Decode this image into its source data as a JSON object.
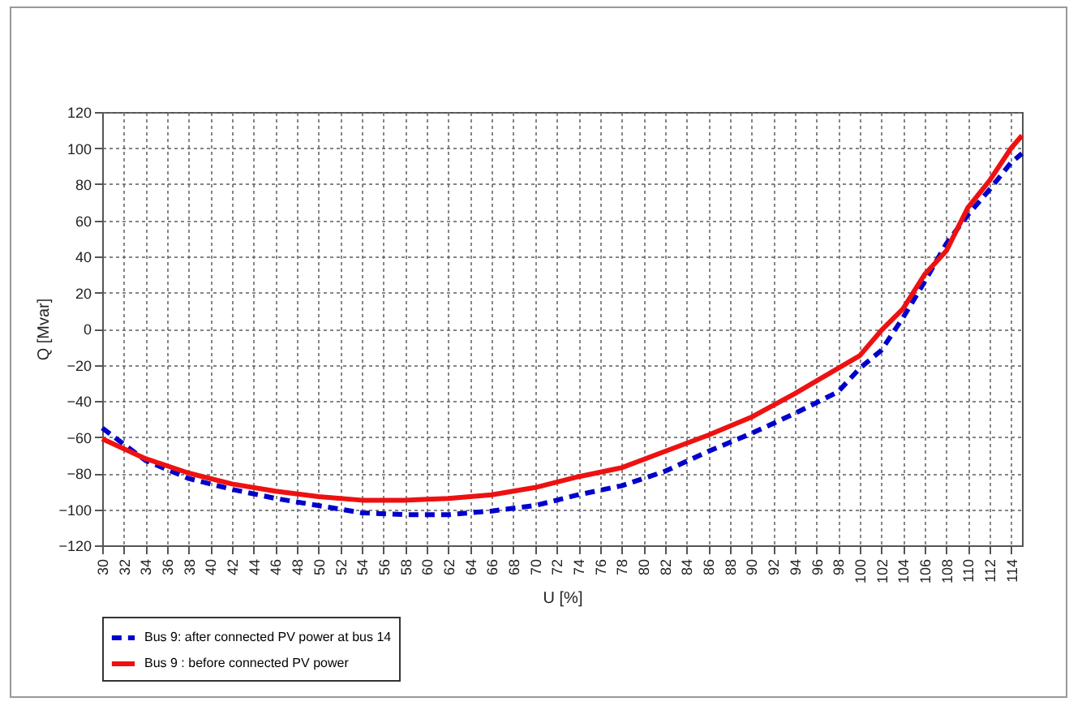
{
  "chart_data": {
    "type": "line",
    "xlabel": "U [%]",
    "ylabel": "Q [Mvar]",
    "xlim": [
      30,
      115
    ],
    "xticks": [
      30,
      32,
      34,
      36,
      38,
      40,
      42,
      44,
      46,
      48,
      50,
      52,
      54,
      56,
      58,
      60,
      62,
      64,
      66,
      68,
      70,
      72,
      74,
      76,
      78,
      80,
      82,
      84,
      86,
      88,
      90,
      92,
      94,
      96,
      98,
      100,
      102,
      104,
      106,
      108,
      110,
      112,
      114
    ],
    "ylim": [
      -120,
      120
    ],
    "yticks": [
      -120,
      -100,
      -80,
      -60,
      -40,
      -20,
      0,
      20,
      40,
      60,
      80,
      100,
      120
    ],
    "grid": true,
    "legend": "bottom",
    "marker": "none",
    "x": [
      30,
      34,
      38,
      42,
      46,
      50,
      54,
      58,
      62,
      66,
      70,
      74,
      78,
      82,
      86,
      90,
      94,
      98,
      100,
      102,
      104,
      106,
      108,
      110,
      112,
      114,
      115
    ],
    "series": [
      {
        "name": "Bus 9: after connected PV power at bus 14",
        "color": "#0000cc",
        "line_style": "dashed",
        "values": [
          -55,
          -73,
          -83,
          -89,
          -94,
          -98,
          -102,
          -103,
          -103,
          -101,
          -98,
          -92,
          -87,
          -79,
          -68,
          -58,
          -47,
          -35,
          -22,
          -12,
          6,
          26,
          47,
          63,
          77,
          92,
          97
        ]
      },
      {
        "name": "Bus 9 : before connected PV power",
        "color": "#ee1111",
        "line_style": "solid",
        "values": [
          -61,
          -72,
          -80,
          -86,
          -90,
          -93,
          -95,
          -95,
          -94,
          -92,
          -88,
          -82,
          -77,
          -68,
          -59,
          -49,
          -36,
          -22,
          -15,
          -1,
          11,
          30,
          43,
          67,
          82,
          100,
          107
        ]
      }
    ]
  }
}
